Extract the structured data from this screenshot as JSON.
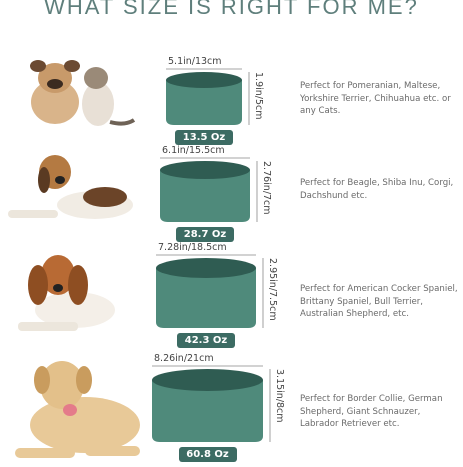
{
  "title": "WHAT SIZE IS RIGHT FOR ME?",
  "sizes": [
    {
      "width": "5.1in/13cm",
      "height": "1.9in/5cm",
      "capacity": "13.5 Oz",
      "description": "Perfect for Pomeranian, Maltese, Yorkshire Terrier, Chihuahua etc. or any Cats."
    },
    {
      "width": "6.1in/15.5cm",
      "height": "2.76in/7cm",
      "capacity": "28.7 Oz",
      "description": "Perfect for Beagle, Shiba Inu, Corgi, Dachshund etc."
    },
    {
      "width": "7.28in/18.5cm",
      "height": "2.95in/7.5cm",
      "capacity": "42.3 Oz",
      "description": "Perfect for American Cocker Spaniel, Brittany Spaniel, Bull Terrier, Australian Shepherd, etc."
    },
    {
      "width": "8.26in/21cm",
      "height": "3.15in/8cm",
      "capacity": "60.8 Oz",
      "description": "Perfect for Border Collie, German Shepherd, Giant Schnauzer, Labrador Retriever etc."
    }
  ]
}
